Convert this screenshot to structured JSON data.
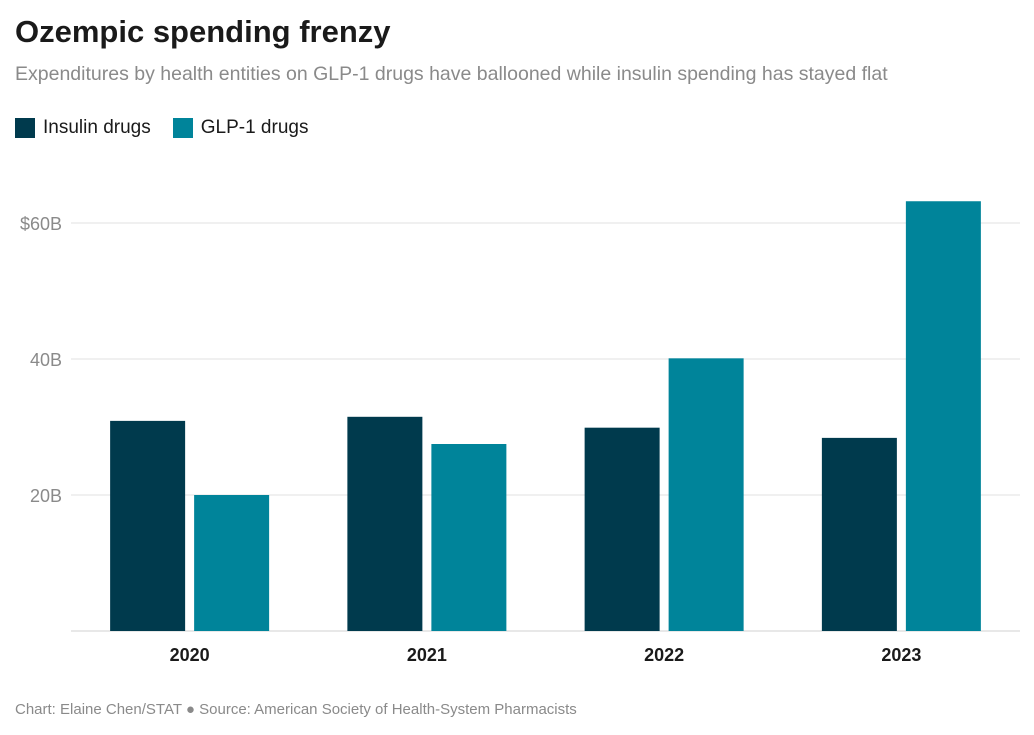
{
  "chart_data": {
    "type": "bar",
    "title": "Ozempic spending frenzy",
    "subtitle": "Expenditures by health entities on GLP-1 drugs have ballooned while insulin spending has stayed flat",
    "categories": [
      "2020",
      "2021",
      "2022",
      "2023"
    ],
    "series": [
      {
        "name": "Insulin drugs",
        "color": "#003a4d",
        "values": [
          30.9,
          31.5,
          29.9,
          28.4
        ]
      },
      {
        "name": "GLP-1 drugs",
        "color": "#00849a",
        "values": [
          20.0,
          27.5,
          40.1,
          63.2
        ]
      }
    ],
    "y_ticks": [
      {
        "value": 20,
        "label": "20B"
      },
      {
        "value": 40,
        "label": "40B"
      },
      {
        "value": 60,
        "label": "$60B"
      }
    ],
    "ylim": [
      0,
      67
    ],
    "unit": "billions USD",
    "grid": true,
    "legend_placement": "top-left",
    "xlabel": "",
    "ylabel": ""
  },
  "footer": "Chart: Elaine Chen/STAT ● Source: American Society of Health-System Pharmacists"
}
